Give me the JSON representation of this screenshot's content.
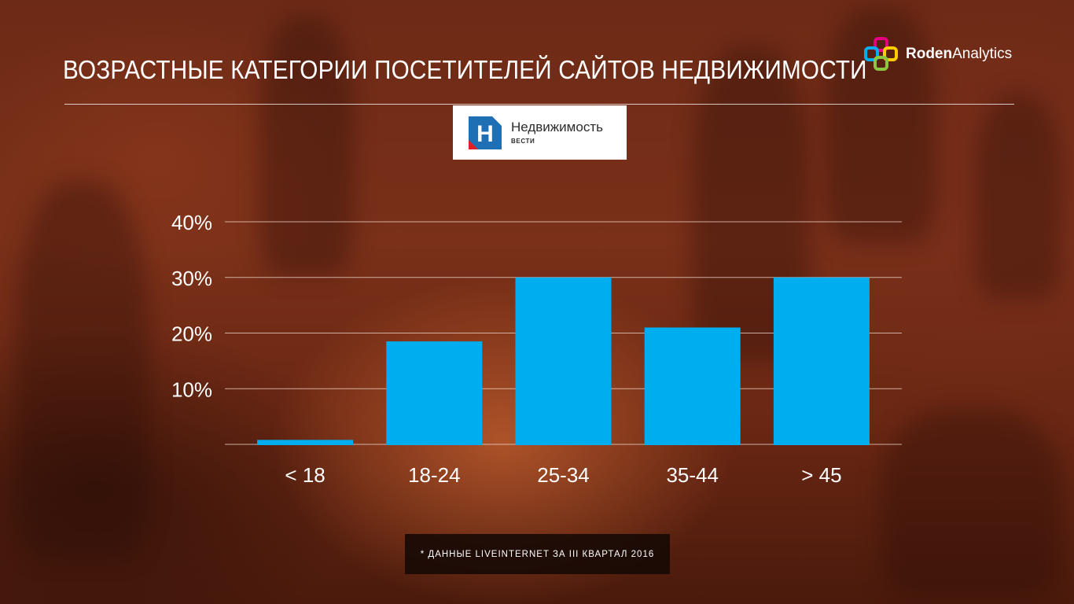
{
  "header": {
    "title": "ВОЗРАСТНЫЕ КАТЕГОРИИ ПОСЕТИТЕЛЕЙ САЙТОВ НЕДВИЖИМОСТИ",
    "brand_part1": "Roden",
    "brand_part2": "Analytics"
  },
  "source_logo": {
    "name": "Недвижимость",
    "sub": "ВЕСТИ",
    "letter": "Н",
    "color": "#1f6fb5"
  },
  "footnote": "* ДАННЫЕ LIVEINTERNET ЗА III КВАРТАЛ 2016",
  "colors": {
    "bar": "#00aeef",
    "gridline": "#e9cfc4"
  },
  "chart_data": {
    "type": "bar",
    "categories": [
      "< 18",
      "18-24",
      "25-34",
      "35-44",
      "> 45"
    ],
    "values": [
      0.8,
      18.5,
      30,
      21,
      30
    ],
    "ylim": [
      0,
      40
    ],
    "yticks": [
      10,
      20,
      30,
      40
    ],
    "ytick_labels": [
      "10%",
      "20%",
      "30%",
      "40%"
    ],
    "grid": true,
    "title": "",
    "xlabel": "",
    "ylabel": ""
  }
}
